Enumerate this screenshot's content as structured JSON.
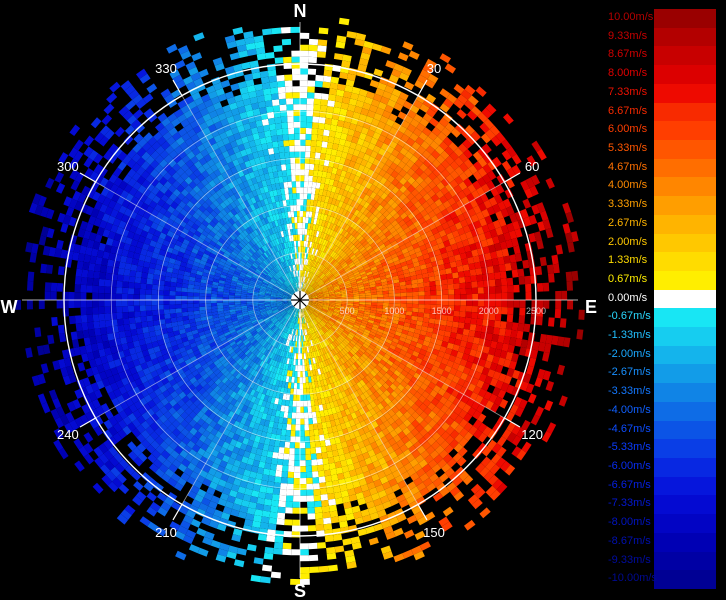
{
  "chart_data": {
    "type": "heatmap",
    "subtype": "polar radial-velocity display",
    "cardinal_labels": {
      "N": "N",
      "E": "E",
      "S": "S",
      "W": "W"
    },
    "azimuth_tick_labels": [
      "30",
      "60",
      "120",
      "150",
      "210",
      "240",
      "300",
      "330"
    ],
    "azimuth_ticks_deg": [
      30,
      60,
      120,
      150,
      210,
      240,
      300,
      330
    ],
    "range_ring_labels": [
      "500",
      "1000",
      "1500",
      "2000",
      "2500"
    ],
    "range_rings": [
      500,
      1000,
      1500,
      2000,
      2500
    ],
    "range_max": 2500,
    "velocity_unit": "m/s",
    "velocity_range": [
      -10.0,
      10.0
    ],
    "pattern": "positive velocities (toward red) on the east half, negative velocities (toward blue) on the west half; zero line along north-south",
    "colorbar": [
      {
        "label": "10.00m/s",
        "value": 10.0,
        "color": "#9a0000",
        "text_color": "#b40000"
      },
      {
        "label": "9.33m/s",
        "value": 9.33,
        "color": "#b30000",
        "text_color": "#c40000"
      },
      {
        "label": "8.67m/s",
        "value": 8.67,
        "color": "#c80000",
        "text_color": "#d00000"
      },
      {
        "label": "8.00m/s",
        "value": 8.0,
        "color": "#dc0000",
        "text_color": "#e00000"
      },
      {
        "label": "7.33m/s",
        "value": 7.33,
        "color": "#ee0a00",
        "text_color": "#ee1100"
      },
      {
        "label": "6.67m/s",
        "value": 6.67,
        "color": "#f82a00",
        "text_color": "#f82a00"
      },
      {
        "label": "6.00m/s",
        "value": 6.0,
        "color": "#ff3e00",
        "text_color": "#ff3e00"
      },
      {
        "label": "5.33m/s",
        "value": 5.33,
        "color": "#ff5600",
        "text_color": "#ff5600"
      },
      {
        "label": "4.67m/s",
        "value": 4.67,
        "color": "#ff6e00",
        "text_color": "#ff7000"
      },
      {
        "label": "4.00m/s",
        "value": 4.0,
        "color": "#ff8600",
        "text_color": "#ff8a00"
      },
      {
        "label": "3.33m/s",
        "value": 3.33,
        "color": "#ff9e00",
        "text_color": "#ffa000"
      },
      {
        "label": "2.67m/s",
        "value": 2.67,
        "color": "#ffb400",
        "text_color": "#ffb400"
      },
      {
        "label": "2.00m/s",
        "value": 2.0,
        "color": "#ffc800",
        "text_color": "#ffc800"
      },
      {
        "label": "1.33m/s",
        "value": 1.33,
        "color": "#ffdc00",
        "text_color": "#ffdc00"
      },
      {
        "label": "0.67m/s",
        "value": 0.67,
        "color": "#ffee00",
        "text_color": "#ffee00"
      },
      {
        "label": "0.00m/s",
        "value": 0.0,
        "color": "#ffffff",
        "text_color": "#ffffff"
      },
      {
        "label": "-0.67m/s",
        "value": -0.67,
        "color": "#18e6f4",
        "text_color": "#2ad8ff"
      },
      {
        "label": "-1.33m/s",
        "value": -1.33,
        "color": "#16cdf0",
        "text_color": "#22c0ff"
      },
      {
        "label": "-2.00m/s",
        "value": -2.0,
        "color": "#14b4ec",
        "text_color": "#1aa8ff"
      },
      {
        "label": "-2.67m/s",
        "value": -2.67,
        "color": "#129ce8",
        "text_color": "#1890ff"
      },
      {
        "label": "-3.33m/s",
        "value": -3.33,
        "color": "#1084e6",
        "text_color": "#1478ff"
      },
      {
        "label": "-4.00m/s",
        "value": -4.0,
        "color": "#0e6ce6",
        "text_color": "#1060ff"
      },
      {
        "label": "-4.67m/s",
        "value": -4.67,
        "color": "#0c54e6",
        "text_color": "#0c4cff"
      },
      {
        "label": "-5.33m/s",
        "value": -5.33,
        "color": "#0a3ee6",
        "text_color": "#0a3cff"
      },
      {
        "label": "-6.00m/s",
        "value": -6.0,
        "color": "#0828e2",
        "text_color": "#082cf0"
      },
      {
        "label": "-6.67m/s",
        "value": -6.67,
        "color": "#0616dc",
        "text_color": "#0620e0"
      },
      {
        "label": "-7.33m/s",
        "value": -7.33,
        "color": "#040ad2",
        "text_color": "#0418d0"
      },
      {
        "label": "-8.00m/s",
        "value": -8.0,
        "color": "#0204c4",
        "text_color": "#0214c0"
      },
      {
        "label": "-8.67m/s",
        "value": -8.67,
        "color": "#0000b4",
        "text_color": "#0010b0"
      },
      {
        "label": "-9.33m/s",
        "value": -9.33,
        "color": "#0000a4",
        "text_color": "#000ca0"
      },
      {
        "label": "-10.00m/s",
        "value": -10.0,
        "color": "#000094",
        "text_color": "#000a90"
      }
    ]
  }
}
